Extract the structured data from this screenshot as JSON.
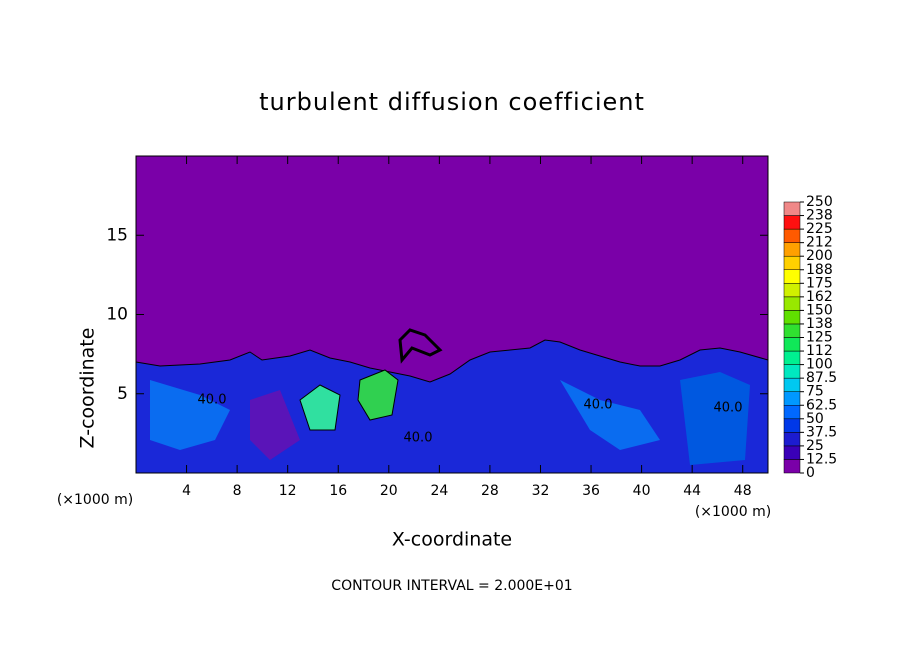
{
  "chart_data": {
    "type": "heatmap",
    "title": "turbulent diffusion coefficient",
    "x_label": "X-coordinate",
    "y_label": "Z-coordinate",
    "x_unit": "(×1000 m)",
    "y_unit": "(×1000 m)",
    "footer": "CONTOUR INTERVAL = 2.000E+01",
    "contour_labels": [
      "40.0",
      "40.0",
      "40.0",
      "40.0"
    ],
    "xlim": [
      0,
      50
    ],
    "xticks": [
      4,
      8,
      12,
      16,
      20,
      24,
      28,
      32,
      36,
      40,
      44,
      48
    ],
    "ylim": [
      0,
      20
    ],
    "yticks": [
      5,
      10,
      15
    ],
    "background_color": "#7a00a8",
    "colorbar": {
      "levels": [
        0,
        12.5,
        25,
        37.5,
        50,
        62.5,
        75,
        87.5,
        100,
        {
          "value": 112.5,
          "label": "112"
        },
        125,
        {
          "value": 137.5,
          "label": "138"
        },
        150,
        {
          "value": 162.5,
          "label": "162"
        },
        175,
        {
          "value": 187.5,
          "label": "188"
        },
        200,
        {
          "value": 212.5,
          "label": "212"
        },
        225,
        {
          "value": 237.5,
          "label": "238"
        },
        250
      ],
      "colors": [
        "#7a00a8",
        "#3a00b8",
        "#1c1cd0",
        "#0038e8",
        "#0068ff",
        "#0098ff",
        "#00c8f0",
        "#00e8c0",
        "#00f090",
        "#10e858",
        "#30e030",
        "#60e000",
        "#98e800",
        "#d0f000",
        "#ffff00",
        "#ffd000",
        "#ffa000",
        "#ff5a00",
        "#ff1010",
        "#f08888"
      ]
    }
  }
}
